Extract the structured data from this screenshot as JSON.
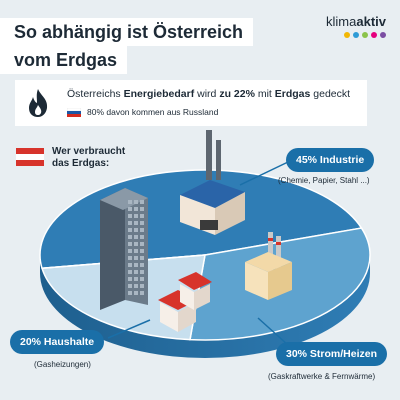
{
  "header": {
    "title_line1": "So abhängig ist Österreich",
    "title_line2": "vom Erdgas"
  },
  "logo": {
    "text_regular": "klima",
    "text_bold": "aktiv",
    "dot_colors": [
      "#f2b705",
      "#2e9bd6",
      "#8bc34a",
      "#e6007e",
      "#7b4ea3"
    ]
  },
  "info": {
    "main_prefix": "Österreichs ",
    "main_bold1": "Energiebedarf",
    "main_mid": " wird ",
    "main_bold2": "zu 22%",
    "main_mid2": " mit ",
    "main_bold3": "Erdgas",
    "main_suffix": " gedeckt",
    "sub": "80% davon kommen aus Russland",
    "flame_icon": "flame-icon"
  },
  "question": {
    "line1": "Wer verbraucht",
    "line2": "das Erdgas:"
  },
  "chart_data": {
    "type": "pie",
    "categories": [
      "Industrie",
      "Strom/Heizen",
      "Haushalte"
    ],
    "values": [
      45,
      30,
      20
    ],
    "labels": [
      "45% Industrie",
      "30% Strom/Heizen",
      "20% Haushalte"
    ],
    "notes": [
      "(Chemie, Papier, Stahl ...)",
      "(Gaskraftwerke & Fernwärme)",
      "(Gasheizungen)"
    ],
    "colors": [
      "#2f7db5",
      "#5ea3cf",
      "#c7dfee"
    ]
  },
  "colors": {
    "background": "#e8eef2",
    "accent": "#1a6fa8",
    "text": "#1d2a36"
  }
}
